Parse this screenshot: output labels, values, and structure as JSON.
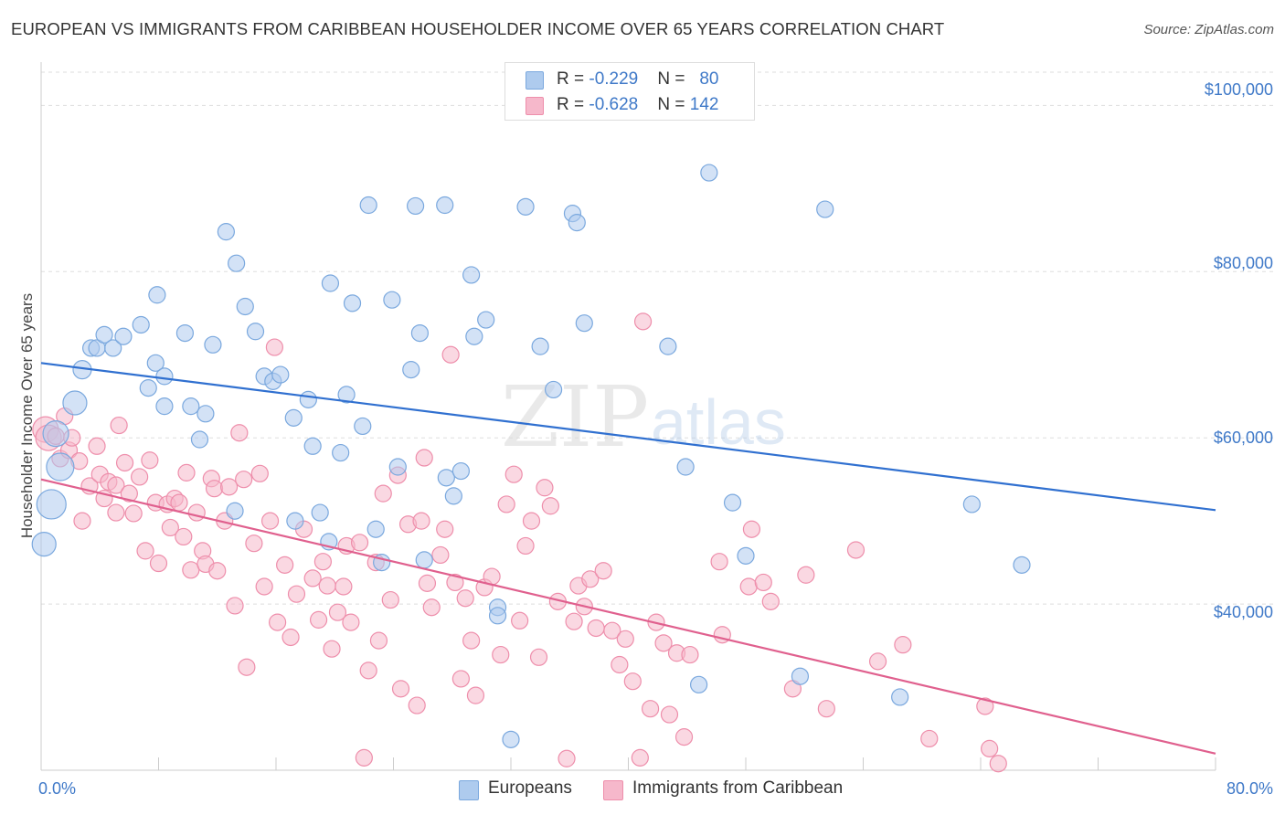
{
  "title": "EUROPEAN VS IMMIGRANTS FROM CARIBBEAN HOUSEHOLDER INCOME OVER 65 YEARS CORRELATION CHART",
  "source": "Source: ZipAtlas.com",
  "watermark": {
    "zip": "ZIP",
    "atlas": "atlas"
  },
  "legend": {
    "rows": [
      {
        "r_label": "R = ",
        "r_value": "-0.229",
        "n_label": "N = ",
        "n_value": "80"
      },
      {
        "r_label": "R = ",
        "r_value": "-0.628",
        "n_label": "N = ",
        "n_value": "142"
      }
    ],
    "bottom": [
      "Europeans",
      "Immigrants from Caribbean"
    ]
  },
  "colors": {
    "blue_fill": "#aecbee",
    "blue_stroke": "#7aa8de",
    "blue_line": "#3070d0",
    "pink_fill": "#f6b8cb",
    "pink_stroke": "#ee8eab",
    "pink_line": "#e0608e",
    "accent_text": "#3f79c8",
    "grid": "#dddddd"
  },
  "chart_data": {
    "type": "scatter",
    "title": "EUROPEAN VS IMMIGRANTS FROM CARIBBEAN HOUSEHOLDER INCOME OVER 65 YEARS CORRELATION CHART",
    "ylabel": "Householder Income Over 65 years",
    "xlabel": "",
    "x_tick_labels": [
      "0.0%",
      "80.0%"
    ],
    "y_tick_labels": [
      "$40,000",
      "$60,000",
      "$80,000",
      "$100,000"
    ],
    "xlim": [
      0,
      80
    ],
    "ylim": [
      20000,
      104000
    ],
    "y_ticks": [
      40000,
      60000,
      80000,
      100000
    ],
    "grid": "horizontal dashed",
    "legend_position": "top-center",
    "series": [
      {
        "name": "Europeans",
        "r": -0.229,
        "n": 80,
        "trend": {
          "x": [
            0,
            80
          ],
          "y": [
            69000,
            51300
          ]
        },
        "points": [
          [
            0.2,
            47200
          ],
          [
            0.7,
            52000
          ],
          [
            1.0,
            60500
          ],
          [
            1.3,
            56500
          ],
          [
            2.3,
            64200
          ],
          [
            2.8,
            68200
          ],
          [
            3.4,
            70800
          ],
          [
            3.8,
            70800
          ],
          [
            4.3,
            72400
          ],
          [
            4.9,
            70800
          ],
          [
            5.6,
            72200
          ],
          [
            6.8,
            73600
          ],
          [
            7.3,
            66000
          ],
          [
            7.8,
            69000
          ],
          [
            7.9,
            77200
          ],
          [
            8.4,
            67400
          ],
          [
            8.4,
            63800
          ],
          [
            9.8,
            72600
          ],
          [
            10.2,
            63800
          ],
          [
            10.8,
            59800
          ],
          [
            11.2,
            62900
          ],
          [
            11.7,
            71200
          ],
          [
            12.6,
            84800
          ],
          [
            13.3,
            81000
          ],
          [
            13.2,
            51200
          ],
          [
            13.9,
            75800
          ],
          [
            14.6,
            72800
          ],
          [
            15.2,
            67400
          ],
          [
            15.8,
            66800
          ],
          [
            16.3,
            67600
          ],
          [
            17.2,
            62400
          ],
          [
            17.3,
            50000
          ],
          [
            18.2,
            64600
          ],
          [
            18.5,
            59000
          ],
          [
            19.0,
            51000
          ],
          [
            19.6,
            47500
          ],
          [
            19.7,
            78600
          ],
          [
            20.4,
            58200
          ],
          [
            20.8,
            65200
          ],
          [
            21.2,
            76200
          ],
          [
            21.9,
            61400
          ],
          [
            22.3,
            88000
          ],
          [
            22.8,
            49000
          ],
          [
            23.2,
            45000
          ],
          [
            23.9,
            76600
          ],
          [
            24.3,
            56500
          ],
          [
            25.2,
            68200
          ],
          [
            25.5,
            87900
          ],
          [
            25.8,
            72600
          ],
          [
            26.1,
            45300
          ],
          [
            27.5,
            88000
          ],
          [
            27.6,
            55200
          ],
          [
            28.1,
            53000
          ],
          [
            28.6,
            56000
          ],
          [
            29.3,
            79600
          ],
          [
            29.5,
            72200
          ],
          [
            30.3,
            74200
          ],
          [
            31.1,
            39600
          ],
          [
            31.1,
            38600
          ],
          [
            32.0,
            23700
          ],
          [
            33.0,
            87800
          ],
          [
            34.0,
            71000
          ],
          [
            34.9,
            65800
          ],
          [
            36.2,
            87000
          ],
          [
            36.5,
            85900
          ],
          [
            37.0,
            73800
          ],
          [
            42.7,
            71000
          ],
          [
            43.9,
            56500
          ],
          [
            44.8,
            30300
          ],
          [
            45.5,
            91900
          ],
          [
            47.1,
            52200
          ],
          [
            48.0,
            45800
          ],
          [
            51.7,
            31300
          ],
          [
            53.4,
            87500
          ],
          [
            58.5,
            28800
          ],
          [
            63.4,
            52000
          ],
          [
            66.8,
            44700
          ]
        ]
      },
      {
        "name": "Immigrants from Caribbean",
        "r": -0.628,
        "n": 142,
        "trend": {
          "x": [
            0,
            80
          ],
          "y": [
            55000,
            22000
          ]
        },
        "points": [
          [
            0.3,
            61000
          ],
          [
            0.5,
            60000
          ],
          [
            1.0,
            60200
          ],
          [
            1.3,
            57500
          ],
          [
            1.6,
            62600
          ],
          [
            1.9,
            58500
          ],
          [
            2.1,
            60000
          ],
          [
            2.6,
            57200
          ],
          [
            2.8,
            50000
          ],
          [
            3.3,
            54200
          ],
          [
            3.8,
            59000
          ],
          [
            4.0,
            55600
          ],
          [
            4.3,
            52700
          ],
          [
            4.6,
            54700
          ],
          [
            5.1,
            51000
          ],
          [
            5.1,
            54300
          ],
          [
            5.3,
            61500
          ],
          [
            5.7,
            57000
          ],
          [
            6.0,
            53300
          ],
          [
            6.3,
            50900
          ],
          [
            6.7,
            55300
          ],
          [
            7.1,
            46400
          ],
          [
            7.4,
            57300
          ],
          [
            7.8,
            52200
          ],
          [
            8.0,
            44900
          ],
          [
            8.6,
            52000
          ],
          [
            8.8,
            49200
          ],
          [
            9.1,
            52700
          ],
          [
            9.4,
            52200
          ],
          [
            9.7,
            48100
          ],
          [
            9.9,
            55800
          ],
          [
            10.2,
            44100
          ],
          [
            10.6,
            51000
          ],
          [
            11.0,
            46400
          ],
          [
            11.2,
            44800
          ],
          [
            11.6,
            55100
          ],
          [
            11.8,
            53900
          ],
          [
            12.0,
            44000
          ],
          [
            12.5,
            50000
          ],
          [
            12.8,
            54100
          ],
          [
            13.2,
            39800
          ],
          [
            13.5,
            60600
          ],
          [
            13.8,
            55000
          ],
          [
            14.0,
            32400
          ],
          [
            14.5,
            47300
          ],
          [
            14.9,
            55700
          ],
          [
            15.2,
            42100
          ],
          [
            15.6,
            50000
          ],
          [
            15.9,
            70900
          ],
          [
            16.1,
            37800
          ],
          [
            16.6,
            44700
          ],
          [
            17.0,
            36000
          ],
          [
            17.4,
            41200
          ],
          [
            17.9,
            49000
          ],
          [
            18.5,
            43100
          ],
          [
            18.9,
            38100
          ],
          [
            19.2,
            45100
          ],
          [
            19.5,
            42200
          ],
          [
            19.8,
            34600
          ],
          [
            20.2,
            39000
          ],
          [
            20.6,
            42100
          ],
          [
            20.8,
            47000
          ],
          [
            21.1,
            37800
          ],
          [
            21.7,
            47400
          ],
          [
            22.0,
            21500
          ],
          [
            22.3,
            32000
          ],
          [
            22.8,
            45000
          ],
          [
            23.0,
            35600
          ],
          [
            23.3,
            53300
          ],
          [
            23.8,
            40500
          ],
          [
            24.3,
            55500
          ],
          [
            24.5,
            29800
          ],
          [
            25.0,
            49600
          ],
          [
            25.6,
            27800
          ],
          [
            25.9,
            50000
          ],
          [
            26.1,
            57600
          ],
          [
            26.3,
            42500
          ],
          [
            26.6,
            39600
          ],
          [
            27.2,
            45900
          ],
          [
            27.5,
            49000
          ],
          [
            27.9,
            70000
          ],
          [
            28.2,
            42600
          ],
          [
            28.6,
            31000
          ],
          [
            28.9,
            40700
          ],
          [
            29.3,
            35600
          ],
          [
            29.6,
            29000
          ],
          [
            30.2,
            42000
          ],
          [
            30.7,
            43300
          ],
          [
            31.3,
            33900
          ],
          [
            31.7,
            52000
          ],
          [
            32.2,
            55600
          ],
          [
            32.6,
            38000
          ],
          [
            33.0,
            47000
          ],
          [
            33.4,
            50000
          ],
          [
            33.9,
            33600
          ],
          [
            34.3,
            54000
          ],
          [
            34.7,
            51800
          ],
          [
            35.2,
            40300
          ],
          [
            35.8,
            21400
          ],
          [
            36.3,
            37900
          ],
          [
            36.6,
            42200
          ],
          [
            37.0,
            39700
          ],
          [
            37.4,
            43000
          ],
          [
            37.8,
            37100
          ],
          [
            38.3,
            44000
          ],
          [
            38.9,
            36800
          ],
          [
            39.4,
            32700
          ],
          [
            39.8,
            35800
          ],
          [
            40.3,
            30700
          ],
          [
            40.8,
            21500
          ],
          [
            41.0,
            74000
          ],
          [
            41.5,
            27400
          ],
          [
            41.9,
            37800
          ],
          [
            42.4,
            35300
          ],
          [
            42.8,
            26700
          ],
          [
            43.3,
            34100
          ],
          [
            43.8,
            24000
          ],
          [
            44.2,
            33900
          ],
          [
            46.2,
            45100
          ],
          [
            46.4,
            36300
          ],
          [
            48.2,
            42100
          ],
          [
            48.4,
            49000
          ],
          [
            49.2,
            42600
          ],
          [
            49.7,
            40300
          ],
          [
            51.2,
            29800
          ],
          [
            52.1,
            43500
          ],
          [
            53.5,
            27400
          ],
          [
            55.5,
            46500
          ],
          [
            57.0,
            33100
          ],
          [
            58.7,
            35100
          ],
          [
            60.5,
            23800
          ],
          [
            64.3,
            27700
          ],
          [
            64.6,
            22600
          ],
          [
            65.2,
            20800
          ]
        ]
      }
    ]
  }
}
